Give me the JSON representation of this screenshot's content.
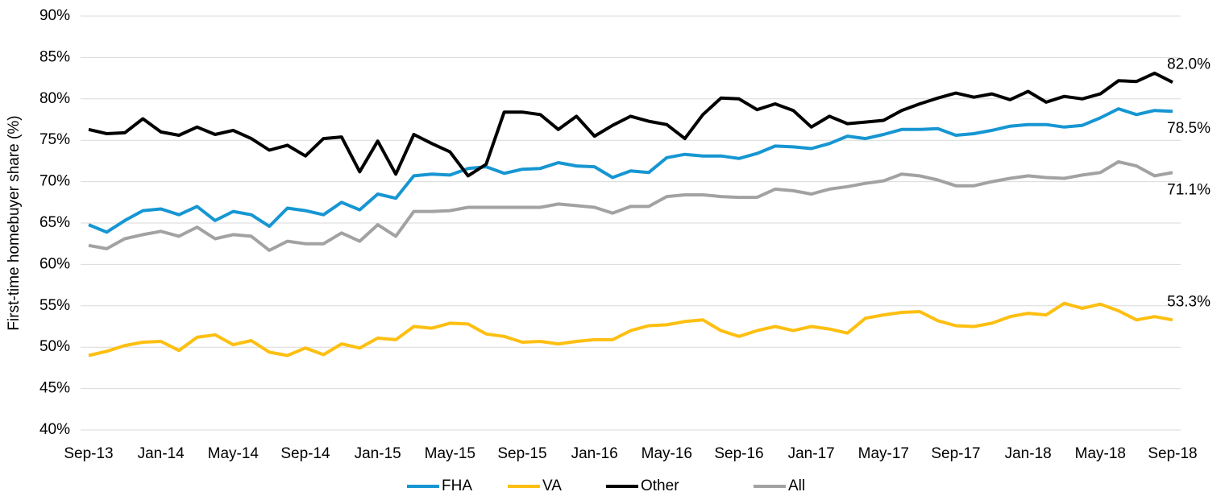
{
  "chart_data": {
    "type": "line",
    "y_label": "First-time homebuyer share (%)",
    "categories": [
      "Sep-13",
      null,
      null,
      null,
      "Jan-14",
      null,
      null,
      null,
      "May-14",
      null,
      null,
      null,
      "Sep-14",
      null,
      null,
      null,
      "Jan-15",
      null,
      null,
      null,
      "May-15",
      null,
      null,
      null,
      "Sep-15",
      null,
      null,
      null,
      "Jan-16",
      null,
      null,
      null,
      "May-16",
      null,
      null,
      null,
      "Sep-16",
      null,
      null,
      null,
      "Jan-17",
      null,
      null,
      null,
      "May-17",
      null,
      null,
      null,
      "Sep-17",
      null,
      null,
      null,
      "Jan-18",
      null,
      null,
      null,
      "May-18",
      null,
      null,
      null,
      "Sep-18"
    ],
    "series": [
      {
        "name": "FHA",
        "color": "#1696d2",
        "values": [
          64.8,
          63.9,
          65.3,
          66.5,
          66.7,
          66.0,
          67.0,
          65.3,
          66.4,
          66.0,
          64.6,
          66.8,
          66.5,
          66.0,
          67.5,
          66.6,
          68.5,
          68.0,
          70.7,
          70.9,
          70.8,
          71.6,
          71.8,
          71.0,
          71.5,
          71.6,
          72.3,
          71.9,
          71.8,
          70.5,
          71.3,
          71.1,
          72.9,
          73.3,
          73.1,
          73.1,
          72.8,
          73.4,
          74.3,
          74.2,
          74.0,
          74.6,
          75.5,
          75.2,
          75.7,
          76.3,
          76.3,
          76.4,
          75.6,
          75.8,
          76.2,
          76.7,
          76.9,
          76.9,
          76.6,
          76.8,
          77.7,
          78.8,
          78.1,
          78.6,
          78.5
        ],
        "value_labels": [
          null,
          null,
          null,
          null,
          null,
          null,
          null,
          null,
          null,
          null,
          null,
          null,
          null,
          null,
          null,
          null,
          null,
          null,
          null,
          null,
          null,
          null,
          null,
          null,
          null,
          null,
          null,
          null,
          null,
          null,
          null,
          null,
          null,
          null,
          null,
          null,
          null,
          null,
          null,
          null,
          null,
          null,
          null,
          null,
          null,
          null,
          null,
          null,
          null,
          null,
          null,
          null,
          null,
          null,
          null,
          null,
          null,
          null,
          null,
          null,
          "78.5%"
        ]
      },
      {
        "name": "VA",
        "color": "#fdbf11",
        "values": [
          49.0,
          49.5,
          50.2,
          50.6,
          50.7,
          49.6,
          51.2,
          51.5,
          50.3,
          50.8,
          49.4,
          49.0,
          49.9,
          49.1,
          50.4,
          49.9,
          51.1,
          50.9,
          52.5,
          52.3,
          52.9,
          52.8,
          51.6,
          51.3,
          50.6,
          50.7,
          50.4,
          50.7,
          50.9,
          50.9,
          52.0,
          52.6,
          52.7,
          53.1,
          53.3,
          52.0,
          51.3,
          52.0,
          52.5,
          52.0,
          52.5,
          52.2,
          51.7,
          53.5,
          53.9,
          54.2,
          54.3,
          53.2,
          52.6,
          52.5,
          52.9,
          53.7,
          54.1,
          53.9,
          55.3,
          54.7,
          55.2,
          54.4,
          53.3,
          53.7,
          53.3
        ],
        "value_labels": [
          null,
          null,
          null,
          null,
          null,
          null,
          null,
          null,
          null,
          null,
          null,
          null,
          null,
          null,
          null,
          null,
          null,
          null,
          null,
          null,
          null,
          null,
          null,
          null,
          null,
          null,
          null,
          null,
          null,
          null,
          null,
          null,
          null,
          null,
          null,
          null,
          null,
          null,
          null,
          null,
          null,
          null,
          null,
          null,
          null,
          null,
          null,
          null,
          null,
          null,
          null,
          null,
          null,
          null,
          null,
          null,
          null,
          null,
          null,
          null,
          "53.3%"
        ]
      },
      {
        "name": "Other",
        "color": "#000000",
        "values": [
          76.3,
          75.8,
          75.9,
          77.6,
          76.0,
          75.6,
          76.6,
          75.7,
          76.2,
          75.2,
          73.8,
          74.4,
          73.1,
          75.2,
          75.4,
          71.2,
          74.9,
          70.9,
          75.7,
          74.6,
          73.6,
          70.7,
          72.1,
          78.4,
          78.4,
          78.1,
          76.3,
          77.9,
          75.5,
          76.8,
          77.9,
          77.3,
          76.9,
          75.2,
          78.1,
          80.1,
          80.0,
          78.7,
          79.4,
          78.6,
          76.6,
          77.9,
          77.0,
          77.2,
          77.4,
          78.6,
          79.4,
          80.1,
          80.7,
          80.2,
          80.6,
          79.9,
          80.9,
          79.6,
          80.3,
          80.0,
          80.6,
          82.2,
          82.1,
          83.1,
          82.0
        ],
        "value_labels": [
          null,
          null,
          null,
          null,
          null,
          null,
          null,
          null,
          null,
          null,
          null,
          null,
          null,
          null,
          null,
          null,
          null,
          null,
          null,
          null,
          null,
          null,
          null,
          null,
          null,
          null,
          null,
          null,
          null,
          null,
          null,
          null,
          null,
          null,
          null,
          null,
          null,
          null,
          null,
          null,
          null,
          null,
          null,
          null,
          null,
          null,
          null,
          null,
          null,
          null,
          null,
          null,
          null,
          null,
          null,
          null,
          null,
          null,
          null,
          null,
          "82.0%"
        ]
      },
      {
        "name": "All",
        "color": "#a2a2a2",
        "values": [
          62.3,
          61.9,
          63.1,
          63.6,
          64.0,
          63.4,
          64.5,
          63.1,
          63.6,
          63.4,
          61.7,
          62.8,
          62.5,
          62.5,
          63.8,
          62.8,
          64.8,
          63.4,
          66.4,
          66.4,
          66.5,
          66.9,
          66.9,
          66.9,
          66.9,
          66.9,
          67.3,
          67.1,
          66.9,
          66.2,
          67.0,
          67.0,
          68.2,
          68.4,
          68.4,
          68.2,
          68.1,
          68.1,
          69.1,
          68.9,
          68.5,
          69.1,
          69.4,
          69.8,
          70.1,
          70.9,
          70.7,
          70.2,
          69.5,
          69.5,
          70.0,
          70.4,
          70.7,
          70.5,
          70.4,
          70.8,
          71.1,
          72.4,
          71.9,
          70.7,
          71.1
        ],
        "value_labels": [
          null,
          null,
          null,
          null,
          null,
          null,
          null,
          null,
          null,
          null,
          null,
          null,
          null,
          null,
          null,
          null,
          null,
          null,
          null,
          null,
          null,
          null,
          null,
          null,
          null,
          null,
          null,
          null,
          null,
          null,
          null,
          null,
          null,
          null,
          null,
          null,
          null,
          null,
          null,
          null,
          null,
          null,
          null,
          null,
          null,
          null,
          null,
          null,
          null,
          null,
          null,
          null,
          null,
          null,
          null,
          null,
          null,
          null,
          null,
          null,
          "71.1%"
        ]
      }
    ],
    "ylim": [
      40,
      90
    ],
    "yticks": [
      {
        "value": 40,
        "label": "40%"
      },
      {
        "value": 45,
        "label": "45%"
      },
      {
        "value": 50,
        "label": "50%"
      },
      {
        "value": 55,
        "label": "55%"
      },
      {
        "value": 60,
        "label": "60%"
      },
      {
        "value": 65,
        "label": "65%"
      },
      {
        "value": 70,
        "label": "70%"
      },
      {
        "value": 75,
        "label": "75%"
      },
      {
        "value": 80,
        "label": "80%"
      },
      {
        "value": 85,
        "label": "85%"
      },
      {
        "value": 90,
        "label": "90%"
      }
    ],
    "grid": true,
    "legend": "bottom"
  }
}
